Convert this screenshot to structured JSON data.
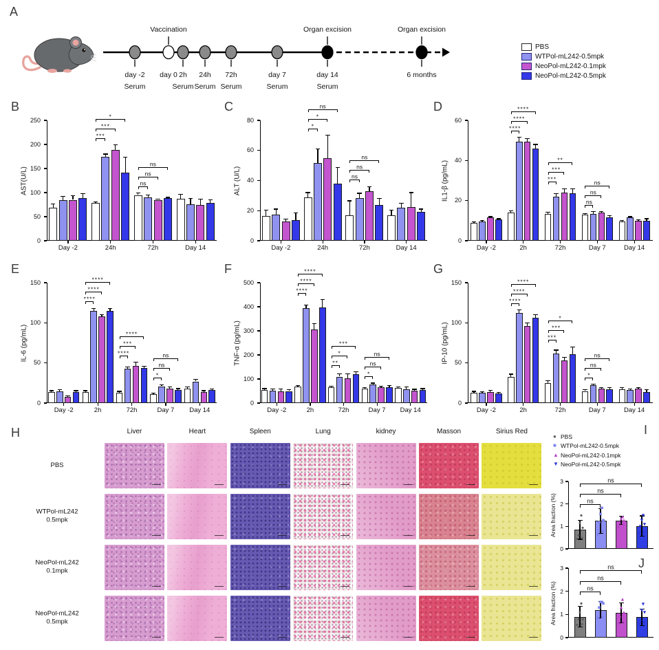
{
  "figure": {
    "panel_letters": {
      "A": "A",
      "B": "B",
      "C": "C",
      "D": "D",
      "E": "E",
      "F": "F",
      "G": "G",
      "H": "H",
      "I": "I",
      "J": "J"
    }
  },
  "colors": {
    "series_fills": [
      "#ffffff",
      "#8f92ef",
      "#c455ce",
      "#3338e8"
    ],
    "bar_border": "#1a1a1a",
    "ij_fills": [
      "#7f7f7f",
      "#8b8ef3",
      "#c050cc",
      "#2f3fe3"
    ],
    "point_colors": [
      "#5a5a5a",
      "#7e82ee",
      "#b845c6",
      "#2d35d8"
    ],
    "dot_gray": "#8a8a8a"
  },
  "legend": {
    "items": [
      {
        "label": "PBS",
        "color": "#ffffff"
      },
      {
        "label": "WTPol-mL242-0.5mpk",
        "color": "#8f92ef"
      },
      {
        "label": "NeoPol-mL242-0.1mpk",
        "color": "#c455ce"
      },
      {
        "label": "NeoPol-mL242-0.5mpk",
        "color": "#3338e8"
      }
    ]
  },
  "timeline": {
    "above_labels": [
      {
        "text": "Vaccination",
        "x": 117
      },
      {
        "text": "Organ excision",
        "x": 348
      },
      {
        "text": "Organ excision",
        "x": 485
      }
    ],
    "points": [
      {
        "x": 68,
        "fill": "gray",
        "label": "day -2",
        "sub": "Serum",
        "tick": true
      },
      {
        "x": 117,
        "fill": "white",
        "label": "day 0",
        "sub": "",
        "tick": false
      },
      {
        "x": 138,
        "fill": "gray",
        "label": "2h",
        "sub": "Serum",
        "tick": true
      },
      {
        "x": 170,
        "fill": "gray",
        "label": "24h",
        "sub": "Serum",
        "tick": true
      },
      {
        "x": 208,
        "fill": "gray",
        "label": "72h",
        "sub": "Serum",
        "tick": true
      },
      {
        "x": 275,
        "fill": "gray",
        "label": "day 7",
        "sub": "Serum",
        "tick": true
      },
      {
        "x": 348,
        "fill": "black",
        "label": "day 14",
        "sub": "Serum",
        "tick": true
      },
      {
        "x": 485,
        "fill": "black",
        "label": "6 months",
        "sub": "",
        "tick": true
      }
    ],
    "line_start": 22,
    "solid_end": 348,
    "dash_end": 512,
    "arrow_tip": 526
  },
  "charts": [
    {
      "panel": "B",
      "ylabel": "AST(U/L)",
      "ylim": 250,
      "yticks": [
        0,
        50,
        100,
        150,
        200,
        250
      ],
      "groups": [
        "Day -2",
        "24h",
        "72h",
        "Day 14"
      ],
      "values": [
        [
          68,
          84,
          85,
          88
        ],
        [
          78,
          174,
          189,
          141
        ],
        [
          95,
          90,
          85,
          88
        ],
        [
          87,
          76,
          74,
          79
        ]
      ],
      "errors": [
        [
          8,
          8,
          8,
          10
        ],
        [
          3,
          6,
          10,
          33
        ],
        [
          4,
          5,
          2,
          2
        ],
        [
          9,
          12,
          13,
          6
        ]
      ],
      "sig": [
        {
          "group": 1,
          "labels": [
            "***",
            "***",
            "*"
          ]
        },
        {
          "group": 2,
          "labels": [
            "ns",
            "ns",
            "ns"
          ]
        }
      ]
    },
    {
      "panel": "C",
      "ylabel": "ALT (U/L)",
      "ylim": 80,
      "yticks": [
        0,
        20,
        40,
        60,
        80
      ],
      "groups": [
        "Day -2",
        "24h",
        "72h",
        "Day 14"
      ],
      "values": [
        [
          16.5,
          17.5,
          13,
          13.5
        ],
        [
          29,
          51.5,
          55,
          38
        ],
        [
          17,
          28.5,
          33,
          24
        ],
        [
          17,
          22,
          22.5,
          19
        ]
      ],
      "errors": [
        [
          4,
          3.5,
          1.5,
          5
        ],
        [
          3,
          9.5,
          15,
          10.5
        ],
        [
          9.5,
          3,
          3,
          4
        ],
        [
          3.5,
          3,
          9.5,
          2
        ]
      ],
      "sig": [
        {
          "group": 1,
          "labels": [
            "*",
            "*",
            "ns"
          ]
        },
        {
          "group": 2,
          "labels": [
            "ns",
            "ns",
            "ns"
          ]
        }
      ]
    },
    {
      "panel": "D",
      "ylabel": "IL1-β (pg/mL)",
      "ylim": 60,
      "yticks": [
        0,
        20,
        40,
        60
      ],
      "groups": [
        "Day -2",
        "2h",
        "72h",
        "Day 7",
        "Day 14"
      ],
      "values": [
        [
          9,
          9.5,
          11.5,
          10.5
        ],
        [
          14,
          49.5,
          49.5,
          46
        ],
        [
          13.5,
          22,
          24,
          23.5
        ],
        [
          13,
          13.5,
          14,
          11.5
        ],
        [
          9.5,
          11.5,
          10,
          10
        ]
      ],
      "errors": [
        [
          0.5,
          0.5,
          0.5,
          0.5
        ],
        [
          0.8,
          2,
          1.5,
          2
        ],
        [
          0.8,
          1.5,
          2,
          2.5
        ],
        [
          0.5,
          1,
          0.5,
          1
        ],
        [
          0.5,
          0.5,
          0.5,
          1
        ]
      ],
      "sig": [
        {
          "group": 1,
          "labels": [
            "****",
            "****",
            "****"
          ]
        },
        {
          "group": 2,
          "labels": [
            "***",
            "***",
            "**"
          ]
        },
        {
          "group": 3,
          "labels": [
            "ns",
            "ns",
            "ns"
          ]
        }
      ]
    },
    {
      "panel": "E",
      "ylabel": "IL-6 (pg/mL)",
      "ylim": 150,
      "yticks": [
        0,
        50,
        100,
        150
      ],
      "groups": [
        "Day -2",
        "2h",
        "72h",
        "Day 7",
        "Day 14"
      ],
      "values": [
        [
          14,
          15,
          8,
          14
        ],
        [
          14,
          115,
          108,
          115
        ],
        [
          13,
          43,
          46,
          44
        ],
        [
          11,
          21,
          18,
          16
        ],
        [
          18,
          27,
          14,
          16
        ]
      ],
      "errors": [
        [
          1.5,
          1.5,
          1,
          1.5
        ],
        [
          1.5,
          3,
          2,
          3
        ],
        [
          1.5,
          2,
          5,
          2
        ],
        [
          1.5,
          2,
          2,
          2
        ],
        [
          2,
          2.5,
          1.5,
          1.5
        ]
      ],
      "sig": [
        {
          "group": 1,
          "labels": [
            "****",
            "****",
            "****"
          ]
        },
        {
          "group": 2,
          "labels": [
            "****",
            "***",
            "****"
          ]
        },
        {
          "group": 3,
          "labels": [
            "*",
            "ns",
            "ns"
          ]
        }
      ]
    },
    {
      "panel": "F",
      "ylabel": "TNF-α (pg/mL)",
      "ylim": 500,
      "yticks": [
        0,
        100,
        200,
        300,
        400,
        500
      ],
      "groups": [
        "Day -2",
        "2h",
        "72h",
        "Day 7",
        "Day 14"
      ],
      "values": [
        [
          55,
          52,
          48,
          50
        ],
        [
          68,
          395,
          307,
          398
        ],
        [
          65,
          110,
          103,
          120
        ],
        [
          60,
          77,
          66,
          67
        ],
        [
          62,
          58,
          51,
          55
        ]
      ],
      "errors": [
        [
          5,
          6,
          10,
          6
        ],
        [
          5,
          12,
          22,
          32
        ],
        [
          6,
          12,
          18,
          10
        ],
        [
          5,
          6,
          5,
          6
        ],
        [
          5,
          8,
          6,
          5
        ]
      ],
      "sig": [
        {
          "group": 1,
          "labels": [
            "****",
            "****",
            "****"
          ]
        },
        {
          "group": 2,
          "labels": [
            "**",
            "*",
            "***"
          ]
        },
        {
          "group": 3,
          "labels": [
            "*",
            "ns",
            "ns"
          ]
        }
      ]
    },
    {
      "panel": "G",
      "ylabel": "IP-10 (pg/mL)",
      "ylim": 150,
      "yticks": [
        0,
        50,
        100,
        150
      ],
      "groups": [
        "Day -2",
        "2h",
        "72h",
        "Day 7",
        "Day 14"
      ],
      "values": [
        [
          13,
          12.5,
          14,
          12
        ],
        [
          33,
          112,
          96,
          106
        ],
        [
          25,
          62,
          53,
          61
        ],
        [
          15,
          22,
          18,
          17
        ],
        [
          17,
          16,
          18,
          14
        ]
      ],
      "errors": [
        [
          1.5,
          1.5,
          2,
          1.5
        ],
        [
          3,
          4,
          4,
          4
        ],
        [
          3,
          4,
          4,
          9
        ],
        [
          2,
          1.5,
          1.5,
          2
        ],
        [
          2.5,
          1.5,
          1.5,
          3
        ]
      ],
      "sig": [
        {
          "group": 1,
          "labels": [
            "****",
            "****",
            "****"
          ]
        },
        {
          "group": 2,
          "labels": [
            "***",
            "***",
            "*"
          ]
        },
        {
          "group": 3,
          "labels": [
            "*",
            "ns",
            "ns"
          ]
        }
      ]
    }
  ],
  "histology": {
    "columns": [
      "Liver",
      "Heart",
      "Spleen",
      "Lung",
      "kidney",
      "Masson",
      "Sirius Red"
    ],
    "rows": [
      {
        "lines": [
          "PBS"
        ]
      },
      {
        "lines": [
          "WTPol-mL242",
          "0.5mpk"
        ]
      },
      {
        "lines": [
          "NeoPol-mL242",
          "0.1mpk"
        ]
      },
      {
        "lines": [
          "NeoPol-mL242",
          "0.5mpk"
        ]
      }
    ]
  },
  "area_charts": [
    {
      "panel": "I",
      "ylabel": "Area fraction (%)",
      "ylim": 3,
      "yticks": [
        0,
        1,
        2,
        3
      ],
      "values": [
        0.85,
        1.25,
        1.27,
        1.02
      ],
      "errors": [
        0.42,
        0.55,
        0.18,
        0.45
      ],
      "points": [
        [
          0.45,
          0.5,
          0.6,
          0.95,
          1.15,
          1.5
        ],
        [
          0.65,
          0.8,
          1.2,
          1.3,
          1.55,
          1.85
        ],
        [
          1.0,
          1.1,
          1.2,
          1.3,
          1.35,
          1.45
        ],
        [
          0.7,
          0.75,
          1.0,
          1.1,
          1.3,
          1.5
        ]
      ],
      "sig": [
        "ns",
        "ns",
        "ns"
      ],
      "legend": [
        {
          "label": "PBS",
          "symbol": "●"
        },
        {
          "label": "WTPol-mL242-0.5mpk",
          "symbol": "■"
        },
        {
          "label": "NeoPol-mL242-0.1mpk",
          "symbol": "▲"
        },
        {
          "label": "NeoPol-mL242-0.5mpk",
          "symbol": "▼"
        }
      ]
    },
    {
      "panel": "J",
      "ylabel": "Area fraction (%)",
      "ylim": 3,
      "yticks": [
        0,
        1,
        2,
        3
      ],
      "values": [
        0.9,
        1.2,
        1.07,
        0.88
      ],
      "errors": [
        0.45,
        0.35,
        0.42,
        0.35
      ],
      "points": [
        [
          0.55,
          0.6,
          0.8,
          0.8,
          1.1,
          1.5
        ],
        [
          0.85,
          0.9,
          1.3,
          1.5,
          1.55,
          1.55
        ],
        [
          0.65,
          0.7,
          0.95,
          1.1,
          1.3,
          1.65
        ],
        [
          0.6,
          0.65,
          0.7,
          1.1,
          1.2,
          1.45
        ]
      ],
      "sig": [
        "ns",
        "ns",
        "ns"
      ]
    }
  ]
}
